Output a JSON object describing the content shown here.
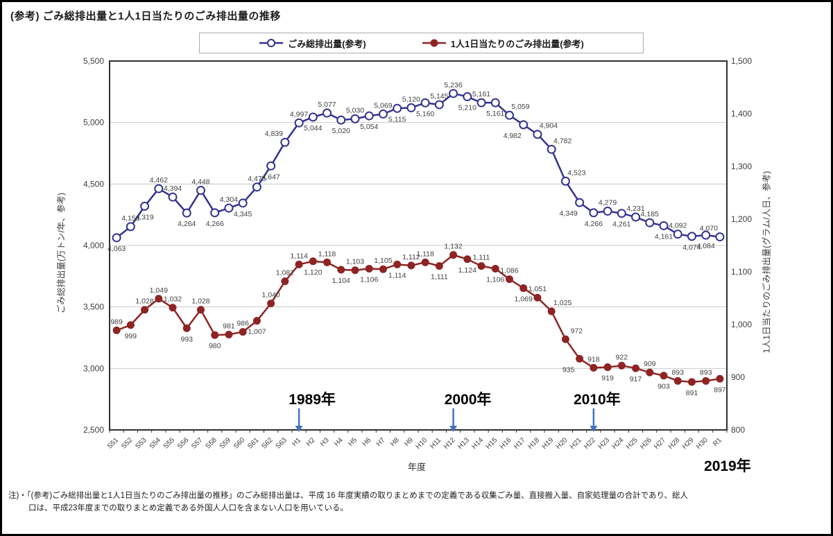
{
  "page": {
    "title": "(参考) ごみ総排出量と1人1日当たりのごみ排出量の推移",
    "note_line1": "注)・「(参考)ごみ総排出量と1人1日当たりのごみ排出量の推移」のごみ総排出量は、平成 16 年度実績の取りまとめまでの定義である収集ごみ量、直接搬入量、自家処理量の合計であり、総人",
    "note_line2": "口は、平成23年度までの取りまとめ定義である外国人人口を含まない人口を用いている。"
  },
  "legend": {
    "series1": "ごみ総排出量(参考)",
    "series2": "1人1日当たりのごみ排出量(参考)"
  },
  "chart_data": {
    "type": "line",
    "categories": [
      "S51",
      "S52",
      "S53",
      "S54",
      "S55",
      "S56",
      "S57",
      "S58",
      "S59",
      "S60",
      "S61",
      "S62",
      "S63",
      "H1",
      "H2",
      "H3",
      "H4",
      "H5",
      "H6",
      "H7",
      "H8",
      "H9",
      "H10",
      "H11",
      "H12",
      "H13",
      "H14",
      "H15",
      "H16",
      "H17",
      "H18",
      "H19",
      "H20",
      "H21",
      "H22",
      "H23",
      "H24",
      "H25",
      "H26",
      "H27",
      "H28",
      "H29",
      "H30",
      "R1"
    ],
    "series": [
      {
        "name": "ごみ総排出量(参考)",
        "axis": "left",
        "color": "#32328e",
        "marker": "open-circle",
        "values": [
          4063,
          4153,
          4319,
          4462,
          4394,
          4264,
          4448,
          4266,
          4304,
          4345,
          4475,
          4647,
          4839,
          4997,
          5044,
          5077,
          5020,
          5030,
          5054,
          5069,
          5115,
          5120,
          5160,
          5145,
          5236,
          5210,
          5161,
          5161,
          5059,
          4982,
          4904,
          4782,
          4523,
          4349,
          4266,
          4279,
          4261,
          4231,
          4185,
          4161,
          4092,
          4074,
          4084,
          4070
        ],
        "label_side": [
          "b",
          "a",
          "b",
          "a",
          "a",
          "b",
          "a",
          "b",
          "a",
          "b",
          "a",
          "b",
          "al",
          "a",
          "b",
          "a",
          "b",
          "a",
          "b",
          "a",
          "b",
          "a",
          "b",
          "a",
          "a",
          "b",
          "a",
          "b",
          "ar",
          "bl",
          "ar",
          "ar",
          "ar",
          "bl",
          "b",
          "a",
          "b",
          "a",
          "a",
          "b",
          "a",
          "b",
          "b",
          "al"
        ]
      },
      {
        "name": "1人1日当たりのごみ排出量(参考)",
        "axis": "right",
        "color": "#8e2424",
        "marker": "filled-circle",
        "values": [
          989,
          999,
          1028,
          1049,
          1032,
          993,
          1028,
          980,
          981,
          986,
          1007,
          1040,
          1082,
          1114,
          1120,
          1118,
          1104,
          1103,
          1106,
          1105,
          1114,
          1112,
          1118,
          1111,
          1132,
          1124,
          1111,
          1106,
          1086,
          1069,
          1051,
          1025,
          972,
          935,
          918,
          919,
          922,
          917,
          909,
          903,
          893,
          891,
          893,
          897
        ],
        "label_side": [
          "a",
          "b",
          "a",
          "a",
          "a",
          "b",
          "a",
          "b",
          "a",
          "a",
          "b",
          "a",
          "a",
          "a",
          "b",
          "a",
          "b",
          "a",
          "b",
          "a",
          "b",
          "a",
          "a",
          "b",
          "a",
          "b",
          "a",
          "b",
          "a",
          "b",
          "a",
          "ar",
          "ar",
          "bl",
          "a",
          "b",
          "a",
          "b",
          "a",
          "b",
          "a",
          "b",
          "a",
          "b"
        ]
      }
    ],
    "left_axis": {
      "title": "ごみ総排出量(万トン/年、参考)",
      "min": 2500,
      "max": 5500,
      "ticks": [
        "5,500",
        "5,000",
        "4,500",
        "4,000",
        "3,500",
        "3,000",
        "2,500"
      ]
    },
    "right_axis": {
      "title": "1人1日当たりのごみ排出量(グラム/人日、参考)",
      "min": 800,
      "max": 1500,
      "ticks": [
        "1,500",
        "1,400",
        "1,300",
        "1,200",
        "1,100",
        "1,000",
        "900",
        "800"
      ]
    },
    "x_axis": {
      "title": "年度"
    },
    "grid": {
      "values": [
        3000,
        3500,
        4000,
        4500,
        5000
      ]
    },
    "annotations": [
      {
        "label": "1989年",
        "index": 13,
        "arrow": true,
        "dx": 19
      },
      {
        "label": "2000年",
        "index": 24,
        "arrow": true,
        "dx": 21
      },
      {
        "label": "2010年",
        "index": 34,
        "arrow": true,
        "dx": 5
      },
      {
        "label": "2019年",
        "index": 43,
        "arrow": false,
        "dx": 11
      }
    ],
    "arrow_color": "#4472c4"
  }
}
